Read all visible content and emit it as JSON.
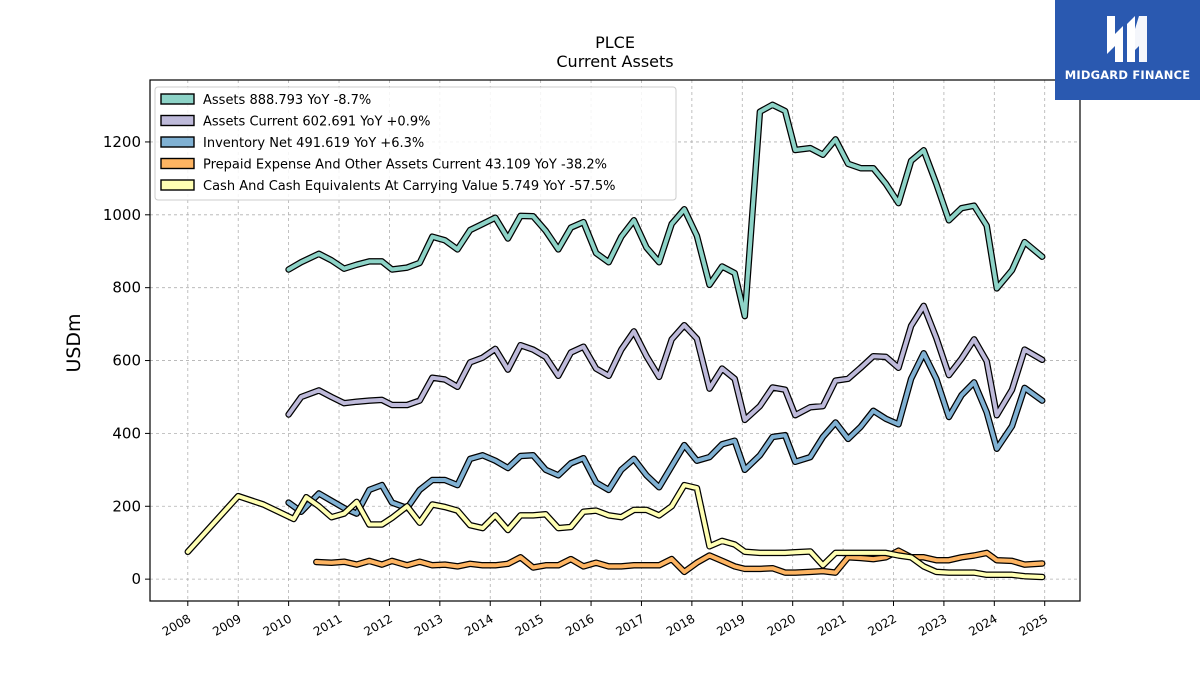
{
  "chart_data": {
    "type": "line",
    "title": "PLCE",
    "subtitle": "Current  Assets",
    "xlabel": "",
    "ylabel": "USDm",
    "xlim": [
      2007.25,
      2025.7
    ],
    "ylim": [
      -60,
      1370
    ],
    "x_ticks": [
      "2008",
      "2009",
      "2010",
      "2011",
      "2012",
      "2013",
      "2014",
      "2015",
      "2016",
      "2017",
      "2018",
      "2019",
      "2020",
      "2021",
      "2022",
      "2023",
      "2024",
      "2025"
    ],
    "y_ticks": [
      "0",
      "200",
      "400",
      "600",
      "800",
      "1000",
      "1200"
    ],
    "grid": true,
    "legend_position": "top-left",
    "series": [
      {
        "name": "Assets  888.793 YoY -8.7%",
        "color": "#8dd3c7",
        "points": [
          [
            2010.0,
            850
          ],
          [
            2010.25,
            870
          ],
          [
            2010.6,
            893
          ],
          [
            2010.85,
            875
          ],
          [
            2011.1,
            852
          ],
          [
            2011.35,
            863
          ],
          [
            2011.6,
            872
          ],
          [
            2011.85,
            872
          ],
          [
            2012.05,
            850
          ],
          [
            2012.35,
            855
          ],
          [
            2012.6,
            868
          ],
          [
            2012.85,
            940
          ],
          [
            2013.1,
            930
          ],
          [
            2013.35,
            905
          ],
          [
            2013.6,
            958
          ],
          [
            2013.85,
            975
          ],
          [
            2014.1,
            992
          ],
          [
            2014.35,
            935
          ],
          [
            2014.6,
            997
          ],
          [
            2014.85,
            996
          ],
          [
            2015.1,
            956
          ],
          [
            2015.35,
            905
          ],
          [
            2015.6,
            965
          ],
          [
            2015.85,
            980
          ],
          [
            2016.1,
            895
          ],
          [
            2016.35,
            870
          ],
          [
            2016.6,
            940
          ],
          [
            2016.85,
            985
          ],
          [
            2017.1,
            910
          ],
          [
            2017.35,
            870
          ],
          [
            2017.6,
            975
          ],
          [
            2017.85,
            1015
          ],
          [
            2018.1,
            942
          ],
          [
            2018.35,
            808
          ],
          [
            2018.6,
            858
          ],
          [
            2018.85,
            840
          ],
          [
            2019.05,
            722
          ],
          [
            2019.35,
            1283
          ],
          [
            2019.6,
            1302
          ],
          [
            2019.85,
            1285
          ],
          [
            2020.05,
            1178
          ],
          [
            2020.35,
            1183
          ],
          [
            2020.6,
            1165
          ],
          [
            2020.85,
            1207
          ],
          [
            2021.1,
            1140
          ],
          [
            2021.35,
            1128
          ],
          [
            2021.6,
            1128
          ],
          [
            2021.85,
            1085
          ],
          [
            2022.1,
            1032
          ],
          [
            2022.35,
            1148
          ],
          [
            2022.6,
            1177
          ],
          [
            2022.85,
            1085
          ],
          [
            2023.1,
            985
          ],
          [
            2023.35,
            1018
          ],
          [
            2023.6,
            1025
          ],
          [
            2023.85,
            970
          ],
          [
            2024.05,
            798
          ],
          [
            2024.35,
            848
          ],
          [
            2024.6,
            925
          ],
          [
            2024.95,
            885
          ]
        ]
      },
      {
        "name": "Assets Current  602.691 YoY +0.9%",
        "color": "#bebada",
        "points": [
          [
            2010.0,
            452
          ],
          [
            2010.25,
            500
          ],
          [
            2010.6,
            518
          ],
          [
            2010.85,
            500
          ],
          [
            2011.1,
            483
          ],
          [
            2011.35,
            487
          ],
          [
            2011.6,
            490
          ],
          [
            2011.85,
            492
          ],
          [
            2012.05,
            478
          ],
          [
            2012.35,
            478
          ],
          [
            2012.6,
            490
          ],
          [
            2012.85,
            553
          ],
          [
            2013.1,
            548
          ],
          [
            2013.35,
            528
          ],
          [
            2013.6,
            595
          ],
          [
            2013.85,
            608
          ],
          [
            2014.1,
            632
          ],
          [
            2014.35,
            575
          ],
          [
            2014.6,
            642
          ],
          [
            2014.85,
            630
          ],
          [
            2015.1,
            610
          ],
          [
            2015.35,
            558
          ],
          [
            2015.6,
            622
          ],
          [
            2015.85,
            638
          ],
          [
            2016.1,
            578
          ],
          [
            2016.35,
            558
          ],
          [
            2016.6,
            630
          ],
          [
            2016.85,
            680
          ],
          [
            2017.1,
            612
          ],
          [
            2017.35,
            555
          ],
          [
            2017.6,
            658
          ],
          [
            2017.85,
            697
          ],
          [
            2018.1,
            660
          ],
          [
            2018.35,
            523
          ],
          [
            2018.6,
            578
          ],
          [
            2018.85,
            550
          ],
          [
            2019.05,
            437
          ],
          [
            2019.35,
            475
          ],
          [
            2019.6,
            526
          ],
          [
            2019.85,
            520
          ],
          [
            2020.05,
            450
          ],
          [
            2020.35,
            472
          ],
          [
            2020.6,
            475
          ],
          [
            2020.85,
            545
          ],
          [
            2021.1,
            550
          ],
          [
            2021.35,
            580
          ],
          [
            2021.6,
            612
          ],
          [
            2021.85,
            610
          ],
          [
            2022.1,
            580
          ],
          [
            2022.35,
            695
          ],
          [
            2022.6,
            750
          ],
          [
            2022.85,
            662
          ],
          [
            2023.1,
            560
          ],
          [
            2023.35,
            605
          ],
          [
            2023.6,
            658
          ],
          [
            2023.85,
            598
          ],
          [
            2024.05,
            450
          ],
          [
            2024.35,
            520
          ],
          [
            2024.6,
            630
          ],
          [
            2024.95,
            602
          ]
        ]
      },
      {
        "name": "Inventory Net  491.619 YoY +6.3%",
        "color": "#80b1d3",
        "points": [
          [
            2010.0,
            210
          ],
          [
            2010.25,
            185
          ],
          [
            2010.6,
            235
          ],
          [
            2010.85,
            215
          ],
          [
            2011.1,
            195
          ],
          [
            2011.35,
            180
          ],
          [
            2011.6,
            245
          ],
          [
            2011.85,
            258
          ],
          [
            2012.05,
            210
          ],
          [
            2012.35,
            195
          ],
          [
            2012.6,
            245
          ],
          [
            2012.85,
            272
          ],
          [
            2013.1,
            272
          ],
          [
            2013.35,
            258
          ],
          [
            2013.6,
            330
          ],
          [
            2013.85,
            340
          ],
          [
            2014.1,
            325
          ],
          [
            2014.35,
            305
          ],
          [
            2014.6,
            338
          ],
          [
            2014.85,
            340
          ],
          [
            2015.1,
            300
          ],
          [
            2015.35,
            285
          ],
          [
            2015.6,
            318
          ],
          [
            2015.85,
            332
          ],
          [
            2016.1,
            265
          ],
          [
            2016.35,
            245
          ],
          [
            2016.6,
            300
          ],
          [
            2016.85,
            330
          ],
          [
            2017.1,
            285
          ],
          [
            2017.35,
            252
          ],
          [
            2017.6,
            310
          ],
          [
            2017.85,
            368
          ],
          [
            2018.1,
            325
          ],
          [
            2018.35,
            335
          ],
          [
            2018.6,
            370
          ],
          [
            2018.85,
            380
          ],
          [
            2019.05,
            300
          ],
          [
            2019.35,
            340
          ],
          [
            2019.6,
            390
          ],
          [
            2019.85,
            395
          ],
          [
            2020.05,
            322
          ],
          [
            2020.35,
            335
          ],
          [
            2020.6,
            390
          ],
          [
            2020.85,
            430
          ],
          [
            2021.1,
            385
          ],
          [
            2021.35,
            418
          ],
          [
            2021.6,
            462
          ],
          [
            2021.85,
            440
          ],
          [
            2022.1,
            425
          ],
          [
            2022.35,
            550
          ],
          [
            2022.6,
            620
          ],
          [
            2022.85,
            550
          ],
          [
            2023.1,
            445
          ],
          [
            2023.35,
            505
          ],
          [
            2023.6,
            540
          ],
          [
            2023.85,
            458
          ],
          [
            2024.05,
            358
          ],
          [
            2024.35,
            420
          ],
          [
            2024.6,
            525
          ],
          [
            2024.95,
            490
          ]
        ]
      },
      {
        "name": "Prepaid Expense And Other Assets Current  43.109 YoY -38.2%",
        "color": "#fdb462",
        "points": [
          [
            2010.55,
            47
          ],
          [
            2010.85,
            45
          ],
          [
            2011.1,
            48
          ],
          [
            2011.35,
            40
          ],
          [
            2011.6,
            50
          ],
          [
            2011.85,
            40
          ],
          [
            2012.05,
            50
          ],
          [
            2012.35,
            38
          ],
          [
            2012.6,
            48
          ],
          [
            2012.85,
            38
          ],
          [
            2013.1,
            40
          ],
          [
            2013.35,
            35
          ],
          [
            2013.6,
            42
          ],
          [
            2013.85,
            38
          ],
          [
            2014.1,
            38
          ],
          [
            2014.35,
            42
          ],
          [
            2014.6,
            60
          ],
          [
            2014.85,
            32
          ],
          [
            2015.1,
            38
          ],
          [
            2015.35,
            38
          ],
          [
            2015.6,
            55
          ],
          [
            2015.85,
            35
          ],
          [
            2016.1,
            45
          ],
          [
            2016.35,
            35
          ],
          [
            2016.6,
            35
          ],
          [
            2016.85,
            38
          ],
          [
            2017.1,
            38
          ],
          [
            2017.35,
            38
          ],
          [
            2017.6,
            55
          ],
          [
            2017.85,
            20
          ],
          [
            2018.1,
            45
          ],
          [
            2018.35,
            65
          ],
          [
            2018.6,
            50
          ],
          [
            2018.85,
            35
          ],
          [
            2019.05,
            28
          ],
          [
            2019.35,
            28
          ],
          [
            2019.6,
            30
          ],
          [
            2019.85,
            18
          ],
          [
            2020.05,
            18
          ],
          [
            2020.35,
            20
          ],
          [
            2020.6,
            22
          ],
          [
            2020.85,
            18
          ],
          [
            2021.1,
            60
          ],
          [
            2021.35,
            58
          ],
          [
            2021.6,
            55
          ],
          [
            2021.85,
            60
          ],
          [
            2022.1,
            78
          ],
          [
            2022.35,
            60
          ],
          [
            2022.6,
            60
          ],
          [
            2022.85,
            52
          ],
          [
            2023.1,
            52
          ],
          [
            2023.35,
            60
          ],
          [
            2023.6,
            65
          ],
          [
            2023.85,
            72
          ],
          [
            2024.05,
            52
          ],
          [
            2024.35,
            50
          ],
          [
            2024.6,
            40
          ],
          [
            2024.95,
            43
          ]
        ]
      },
      {
        "name": "Cash And Cash Equivalents At Carrying Value  5.749 YoY -57.5%",
        "color": "#ffffb3",
        "points": [
          [
            2008.0,
            75
          ],
          [
            2009.0,
            228
          ],
          [
            2009.5,
            205
          ],
          [
            2010.1,
            165
          ],
          [
            2010.35,
            225
          ],
          [
            2010.6,
            200
          ],
          [
            2010.85,
            170
          ],
          [
            2011.1,
            180
          ],
          [
            2011.35,
            212
          ],
          [
            2011.6,
            150
          ],
          [
            2011.85,
            150
          ],
          [
            2012.05,
            168
          ],
          [
            2012.35,
            200
          ],
          [
            2012.6,
            155
          ],
          [
            2012.85,
            205
          ],
          [
            2013.1,
            198
          ],
          [
            2013.35,
            188
          ],
          [
            2013.6,
            148
          ],
          [
            2013.85,
            140
          ],
          [
            2014.1,
            175
          ],
          [
            2014.35,
            135
          ],
          [
            2014.6,
            175
          ],
          [
            2014.85,
            175
          ],
          [
            2015.1,
            178
          ],
          [
            2015.35,
            140
          ],
          [
            2015.6,
            143
          ],
          [
            2015.85,
            185
          ],
          [
            2016.1,
            188
          ],
          [
            2016.35,
            175
          ],
          [
            2016.6,
            170
          ],
          [
            2016.85,
            190
          ],
          [
            2017.1,
            190
          ],
          [
            2017.35,
            175
          ],
          [
            2017.6,
            200
          ],
          [
            2017.85,
            258
          ],
          [
            2018.1,
            250
          ],
          [
            2018.35,
            90
          ],
          [
            2018.6,
            105
          ],
          [
            2018.85,
            95
          ],
          [
            2019.05,
            75
          ],
          [
            2019.35,
            72
          ],
          [
            2019.6,
            72
          ],
          [
            2019.85,
            72
          ],
          [
            2020.05,
            74
          ],
          [
            2020.35,
            76
          ],
          [
            2020.6,
            38
          ],
          [
            2020.85,
            72
          ],
          [
            2021.1,
            72
          ],
          [
            2021.35,
            72
          ],
          [
            2021.6,
            72
          ],
          [
            2021.85,
            72
          ],
          [
            2022.1,
            65
          ],
          [
            2022.35,
            60
          ],
          [
            2022.6,
            35
          ],
          [
            2022.85,
            20
          ],
          [
            2023.1,
            18
          ],
          [
            2023.35,
            18
          ],
          [
            2023.6,
            18
          ],
          [
            2023.85,
            12
          ],
          [
            2024.05,
            12
          ],
          [
            2024.35,
            12
          ],
          [
            2024.6,
            8
          ],
          [
            2024.95,
            5.749
          ]
        ]
      }
    ]
  },
  "logo": {
    "text": "MIDGARD FINANCE",
    "background": "#2a59b0",
    "icon": "midgard-logo-icon"
  }
}
